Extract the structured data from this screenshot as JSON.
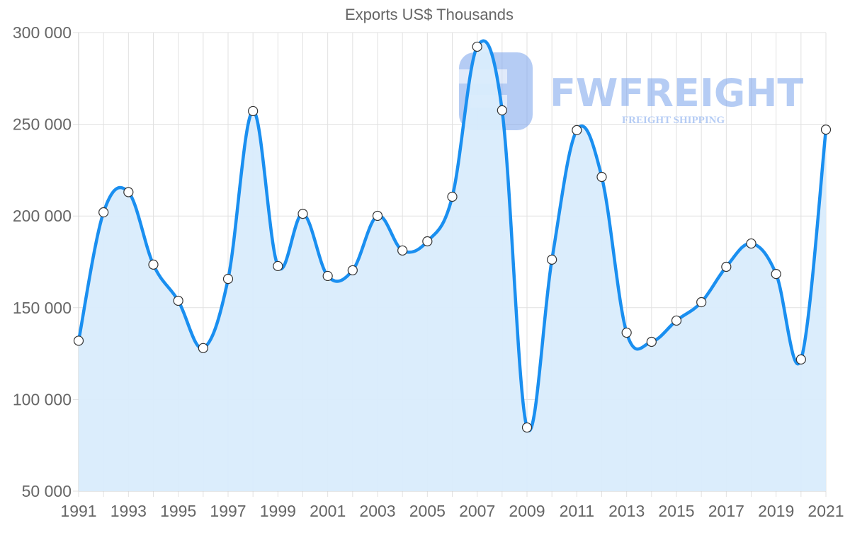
{
  "chart_data": {
    "type": "area",
    "title": "Exports US$ Thousands",
    "xlabel": "",
    "ylabel": "",
    "x": [
      1991,
      1992,
      1993,
      1994,
      1995,
      1996,
      1997,
      1998,
      1999,
      2000,
      2001,
      2002,
      2003,
      2004,
      2005,
      2006,
      2007,
      2008,
      2009,
      2010,
      2011,
      2012,
      2013,
      2014,
      2015,
      2016,
      2017,
      2018,
      2019,
      2020,
      2021
    ],
    "series": [
      {
        "name": "Exports US$ Thousands",
        "values": [
          132000,
          202000,
          213000,
          173500,
          153800,
          128000,
          165700,
          257200,
          172700,
          201200,
          167300,
          170400,
          200100,
          181200,
          186200,
          210500,
          292300,
          257600,
          84700,
          176200,
          246800,
          221300,
          136400,
          131400,
          143000,
          153000,
          172300,
          185000,
          168400,
          121800,
          247100
        ]
      }
    ],
    "ylim": [
      50000,
      300000
    ],
    "y_ticks": [
      "300 000",
      "250 000",
      "200 000",
      "150 000",
      "100 000",
      "50 000"
    ],
    "x_ticks": [
      "1991",
      "1993",
      "1995",
      "1997",
      "1999",
      "2001",
      "2003",
      "2005",
      "2007",
      "2009",
      "2011",
      "2013",
      "2015",
      "2017",
      "2019",
      "2021"
    ],
    "grid": true,
    "legend": "none",
    "colors": {
      "line": "#1a8ff0",
      "fill": "#d9ecfc",
      "marker_fill": "#ffffff",
      "marker_stroke": "#333333"
    }
  },
  "watermark": {
    "brand": "FWFREIGHT",
    "tagline": "FREIGHT SHIPPING"
  }
}
